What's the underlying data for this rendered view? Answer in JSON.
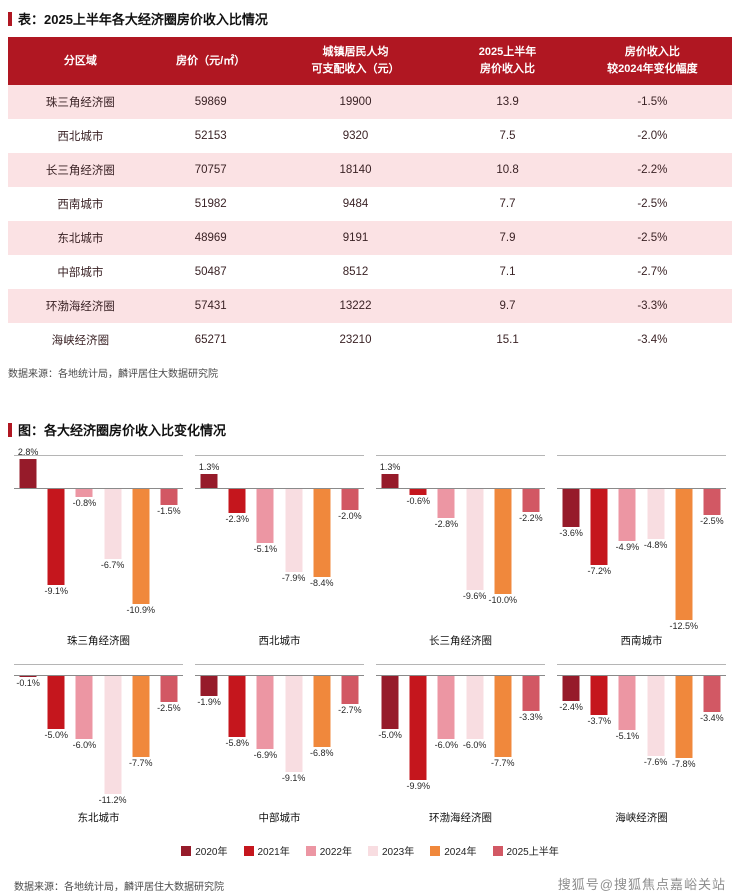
{
  "table_section": {
    "title": "表：2025上半年各大经济圈房价收入比情况",
    "columns": [
      "分区域",
      "房价（元/㎡）",
      "城镇居民人均\n可支配收入（元）",
      "2025上半年\n房价收入比",
      "房价收入比\n较2024年变化幅度"
    ],
    "rows": [
      [
        "珠三角经济圈",
        "59869",
        "19900",
        "13.9",
        "-1.5%"
      ],
      [
        "西北城市",
        "52153",
        "9320",
        "7.5",
        "-2.0%"
      ],
      [
        "长三角经济圈",
        "70757",
        "18140",
        "10.8",
        "-2.2%"
      ],
      [
        "西南城市",
        "51982",
        "9484",
        "7.7",
        "-2.5%"
      ],
      [
        "东北城市",
        "48969",
        "9191",
        "7.9",
        "-2.5%"
      ],
      [
        "中部城市",
        "50487",
        "8512",
        "7.1",
        "-2.7%"
      ],
      [
        "环渤海经济圈",
        "57431",
        "13222",
        "9.7",
        "-3.3%"
      ],
      [
        "海峡经济圈",
        "65271",
        "23210",
        "15.1",
        "-3.4%"
      ]
    ],
    "source": "数据来源：各地统计局，麟评居住大数据研究院"
  },
  "chart_section": {
    "title": "图：各大经济圈房价收入比变化情况",
    "source": "数据来源：各地统计局，麟评居住大数据研究院"
  },
  "chart_data": {
    "type": "bar",
    "title": "各大经济圈房价收入比变化情况",
    "value_suffix": "%",
    "legend_position": "bottom",
    "grid": false,
    "categories": [
      "珠三角经济圈",
      "西北城市",
      "长三角经济圈",
      "西南城市",
      "东北城市",
      "中部城市",
      "环渤海经济圈",
      "海峡经济圈"
    ],
    "series": [
      {
        "name": "2020年",
        "color": "#961b2a",
        "values": [
          2.8,
          1.3,
          1.3,
          -3.6,
          -0.1,
          -1.9,
          -5.0,
          -2.4
        ]
      },
      {
        "name": "2021年",
        "color": "#c5161d",
        "values": [
          -9.1,
          -2.3,
          -0.6,
          -7.2,
          -5.0,
          -5.8,
          -9.9,
          -3.7
        ]
      },
      {
        "name": "2022年",
        "color": "#ec96a3",
        "values": [
          -0.8,
          -5.1,
          -2.8,
          -4.9,
          -6.0,
          -6.9,
          -6.0,
          -5.1
        ]
      },
      {
        "name": "2023年",
        "color": "#f8dde1",
        "values": [
          -6.7,
          -7.9,
          -9.6,
          -4.8,
          -11.2,
          -9.1,
          -6.0,
          -7.6
        ]
      },
      {
        "name": "2024年",
        "color": "#f0883c",
        "values": [
          -10.9,
          -8.4,
          -10.0,
          -12.5,
          -7.7,
          -6.8,
          -7.7,
          -7.8
        ]
      },
      {
        "name": "2025上半年",
        "color": "#d25864",
        "values": [
          -1.5,
          -2.0,
          -2.2,
          -2.5,
          -2.5,
          -2.7,
          -3.3,
          -3.4
        ]
      }
    ],
    "ylim": [
      -13,
      3
    ]
  },
  "colors": {
    "accent_red": "#b01722",
    "header_bg": "#b01722",
    "row_pink": "#fbe2e4",
    "zero_line": "#8a8a8a"
  },
  "watermark": {
    "text": "搜狐号@搜狐焦点嘉峪关站"
  }
}
